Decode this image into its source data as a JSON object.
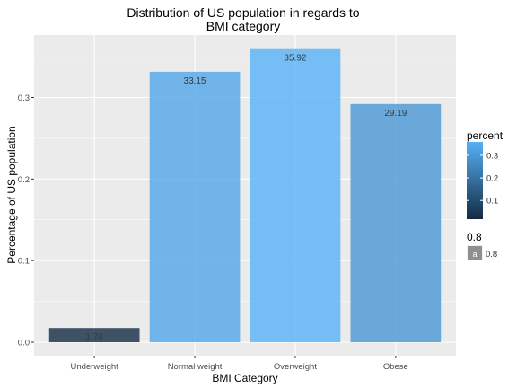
{
  "chart_data": {
    "type": "bar",
    "title_lines": [
      "Distribution of US population in regards to",
      "BMI category"
    ],
    "xlabel": "BMI Category",
    "ylabel": "Percentage of US population",
    "categories": [
      "Underweight",
      "Normal weight",
      "Overweight",
      "Obese"
    ],
    "values": [
      0.0174,
      0.3315,
      0.3592,
      0.2919
    ],
    "data_labels": [
      "1.74",
      "33.15",
      "35.92",
      "29.19"
    ],
    "y_ticks": [
      0.0,
      0.1,
      0.2,
      0.3
    ],
    "y_tick_labels": [
      "0.0",
      "0.1",
      "0.2",
      "0.3"
    ],
    "ylim": [
      -0.0165,
      0.3765
    ],
    "grid": true,
    "bar_alpha": 0.8,
    "color_scale": {
      "low": "#132B43",
      "high": "#56B1F7"
    },
    "legend": {
      "placement": "right",
      "color_title": "percent",
      "color_ticks": [
        0.1,
        0.2,
        0.3
      ],
      "color_tick_labels": [
        "0.1",
        "0.2",
        "0.3"
      ],
      "alpha_title": "0.8",
      "alpha_key_glyph": "a",
      "alpha_key_label": "0.8"
    }
  }
}
